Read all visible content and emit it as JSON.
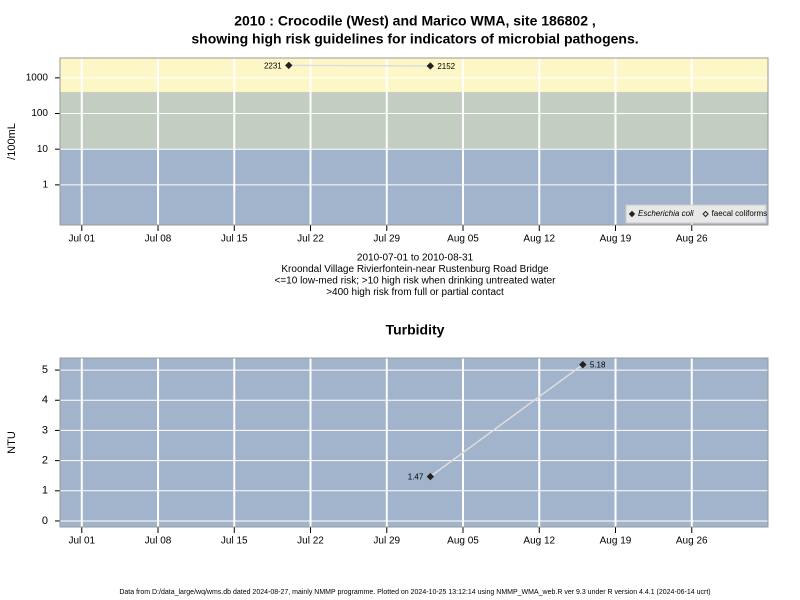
{
  "chart_data": [
    {
      "type": "line",
      "title": [
        "2010 : Crocodile (West) and Marico WMA, site 186802 ,",
        "showing high risk guidelines for indicators of microbial pathogens."
      ],
      "ylabel": "/100mL",
      "notes": [
        "2010-07-01 to 2010-08-31",
        "Kroondal Village Rivierfontein-near Rustenburg Road Bridge",
        "<=10 low-med risk; >10 high risk when drinking untreated water",
        ">400 high risk from full or partial contact"
      ],
      "x": [
        "2010-07-20",
        "2010-08-02"
      ],
      "series": [
        {
          "name": "Escherichia coli",
          "color": "#222222",
          "marker": "filled",
          "values": [
            2231,
            2152
          ]
        },
        {
          "name": "faecal coliforms",
          "color": "#222222",
          "marker": "open",
          "values": [
            null,
            null
          ]
        }
      ],
      "line_color": "#dddddd",
      "xlim": [
        "2010-06-29",
        "2010-09-02"
      ],
      "xticks": [
        {
          "value": "2010-07-01",
          "label": "Jul 01"
        },
        {
          "value": "2010-07-08",
          "label": "Jul 08"
        },
        {
          "value": "2010-07-15",
          "label": "Jul 15"
        },
        {
          "value": "2010-07-22",
          "label": "Jul 22"
        },
        {
          "value": "2010-07-29",
          "label": "Jul 29"
        },
        {
          "value": "2010-08-05",
          "label": "Aug 05"
        },
        {
          "value": "2010-08-12",
          "label": "Aug 12"
        },
        {
          "value": "2010-08-19",
          "label": "Aug 19"
        },
        {
          "value": "2010-08-26",
          "label": "Aug 26"
        }
      ],
      "ylim": [
        0.075,
        3600
      ],
      "yticks": [
        1,
        10,
        100,
        1000
      ],
      "log_y": true,
      "guidelines": [
        10,
        400
      ],
      "band_colors": [
        "#a2b3cc",
        "#c3cdc2",
        "#fdf7c7"
      ],
      "grid": true,
      "legend": "bottom-right"
    },
    {
      "type": "line",
      "title": [
        "Turbidity"
      ],
      "ylabel": "NTU",
      "x": [
        "2010-08-02",
        "2010-08-16"
      ],
      "series": [
        {
          "name": "Turbidity",
          "color": "#222222",
          "marker": "filled",
          "values": [
            1.47,
            5.18
          ]
        }
      ],
      "line_color": "#dddddd",
      "xlim": [
        "2010-06-29",
        "2010-09-02"
      ],
      "xticks": [
        {
          "value": "2010-07-01",
          "label": "Jul 01"
        },
        {
          "value": "2010-07-08",
          "label": "Jul 08"
        },
        {
          "value": "2010-07-15",
          "label": "Jul 15"
        },
        {
          "value": "2010-07-22",
          "label": "Jul 22"
        },
        {
          "value": "2010-07-29",
          "label": "Jul 29"
        },
        {
          "value": "2010-08-05",
          "label": "Aug 05"
        },
        {
          "value": "2010-08-12",
          "label": "Aug 12"
        },
        {
          "value": "2010-08-19",
          "label": "Aug 19"
        },
        {
          "value": "2010-08-26",
          "label": "Aug 26"
        }
      ],
      "ylim": [
        -0.2,
        5.4
      ],
      "yticks": [
        0,
        1,
        2,
        3,
        4,
        5
      ],
      "log_y": false,
      "background": "#a2b3cc",
      "grid": true
    }
  ],
  "footer": "Data from D:/data_large/wq/wms.db dated 2024-08-27, mainly NMMP programme. Plotted on 2024-10-25 13:12:14 using NMMP_WMA_web.R ver 9.3 under R version 4.4.1 (2024-06-14 ucrt)"
}
